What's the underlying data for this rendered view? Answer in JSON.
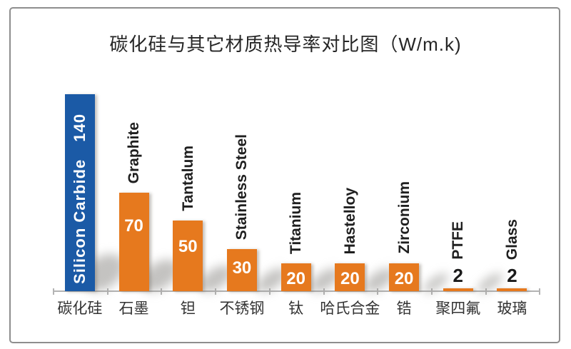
{
  "title": "碳化硅与其它材质热导率对比图（W/m.k)",
  "chart_data": {
    "type": "bar",
    "title": "碳化硅与其它材质热导率对比图",
    "unit": "W/m.k",
    "categories": [
      "碳化硅",
      "石墨",
      "钽",
      "不锈钢",
      "钛",
      "哈氏合金",
      "锆",
      "聚四氟",
      "玻璃"
    ],
    "bar_labels_en": [
      "Silicon Carbide",
      "Graphite",
      "Tantalum",
      "Stainless Steel",
      "Titanium",
      "Hastelloy",
      "Zirconium",
      "PTFE",
      "Glass"
    ],
    "values": [
      140,
      70,
      50,
      30,
      20,
      20,
      20,
      2,
      2
    ],
    "highlight_index": 0,
    "ylim": [
      0,
      145
    ],
    "grid": false,
    "legend": null,
    "colors": {
      "highlight_bar": "#1B5AA6",
      "bar": "#E6791E",
      "inside_value_text": "#FFFFFF",
      "outside_value_text": "#1A1A1A",
      "axis": "#B3B3B3",
      "title_text": "#262626",
      "category_text": "#333333",
      "panel_border": "#8E8E8E",
      "background": "#FFFFFF"
    }
  }
}
